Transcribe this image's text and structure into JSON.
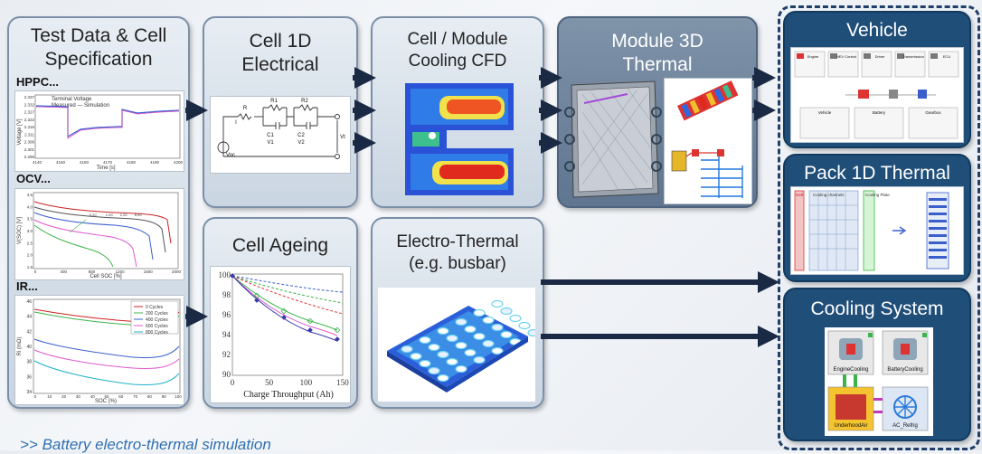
{
  "boxes": {
    "test_data": {
      "title_line1": "Test Data & Cell",
      "title_line2": "Specification"
    },
    "cell_1d": {
      "title_line1": "Cell 1D",
      "title_line2": "Electrical"
    },
    "cooling_cfd": {
      "title_line1": "Cell / Module",
      "title_line2": "Cooling CFD"
    },
    "module_3d": {
      "title_line1": "Module 3D",
      "title_line2": "Thermal"
    },
    "cell_ageing": {
      "title": "Cell Ageing"
    },
    "electro_thermal": {
      "title_line1": "Electro-Thermal",
      "title_line2": "(e.g. busbar)"
    },
    "vehicle": {
      "title": "Vehicle"
    },
    "pack_1d": {
      "title": "Pack 1D Thermal"
    },
    "cooling_system": {
      "title": "Cooling System"
    }
  },
  "test_data_sections": {
    "hppc": "HPPC...",
    "ocv": "OCV...",
    "ir": "IR..."
  },
  "hppc_chart": {
    "legend_title": "Terminal Voltage",
    "legend_series": "Measured — Simulation",
    "ylabel": "Voltage [V]",
    "xlabel": "Time [s]",
    "yticks": [
      "2.337",
      "2.332",
      "2.327",
      "2.322",
      "2.316",
      "2.311",
      "2.306",
      "2.301",
      "2.296"
    ],
    "xticks": [
      "4140",
      "4150",
      "4160",
      "4170",
      "4180",
      "4190",
      "4200"
    ]
  },
  "ocv_chart": {
    "ylabel": "V(SOC) [V]",
    "xlabel": "Cell SOC [%]",
    "yticks": [
      "4.5",
      "4.0",
      "3.5",
      "3.0",
      "2.5",
      "2.0",
      "1.5"
    ],
    "xticks": [
      "0",
      "400",
      "800",
      "1200",
      "1600",
      "2000"
    ],
    "annotations": [
      "0.2C",
      "1.0C",
      "2.0C",
      "5.0C"
    ]
  },
  "ir_chart": {
    "ylabel": "Ri (mΩ)",
    "xlabel": "SOC (%)",
    "yticks": [
      "46",
      "44",
      "42",
      "40",
      "38",
      "36",
      "34"
    ],
    "xticks": [
      "0",
      "10",
      "20",
      "30",
      "40",
      "50",
      "60",
      "70",
      "80",
      "90",
      "100"
    ],
    "legend": [
      "0 Cycles",
      "200 Cycles",
      "400 Cycles",
      "600 Cycles",
      "800 Cycles"
    ]
  },
  "circuit": {
    "labels": [
      "R",
      "I",
      "R1",
      "R2",
      "C1",
      "C2",
      "V1",
      "V2",
      "Vt",
      "Voc"
    ]
  },
  "ageing_chart": {
    "xlabel": "Charge Throughput (Ah)",
    "yticks": [
      "100",
      "98",
      "96",
      "94",
      "92",
      "90"
    ],
    "xticks": [
      "0",
      "50",
      "100",
      "150"
    ]
  },
  "vehicle_panel": {
    "top": [
      "Engine",
      "HEV Control",
      "Driver",
      "Transmission",
      "ECU"
    ],
    "bottom": [
      "Vehicle",
      "Battery",
      "Gearbox"
    ]
  },
  "pack_panel": {
    "labels": [
      "Cell",
      "Cooling channels",
      "Cooling Plate"
    ]
  },
  "cooling_panel": {
    "labels": [
      "EngineCooling",
      "BatteryCooling",
      "UnderhoodAir",
      "AC_Refrig"
    ]
  },
  "caption": ">> Battery electro-thermal simulation"
}
